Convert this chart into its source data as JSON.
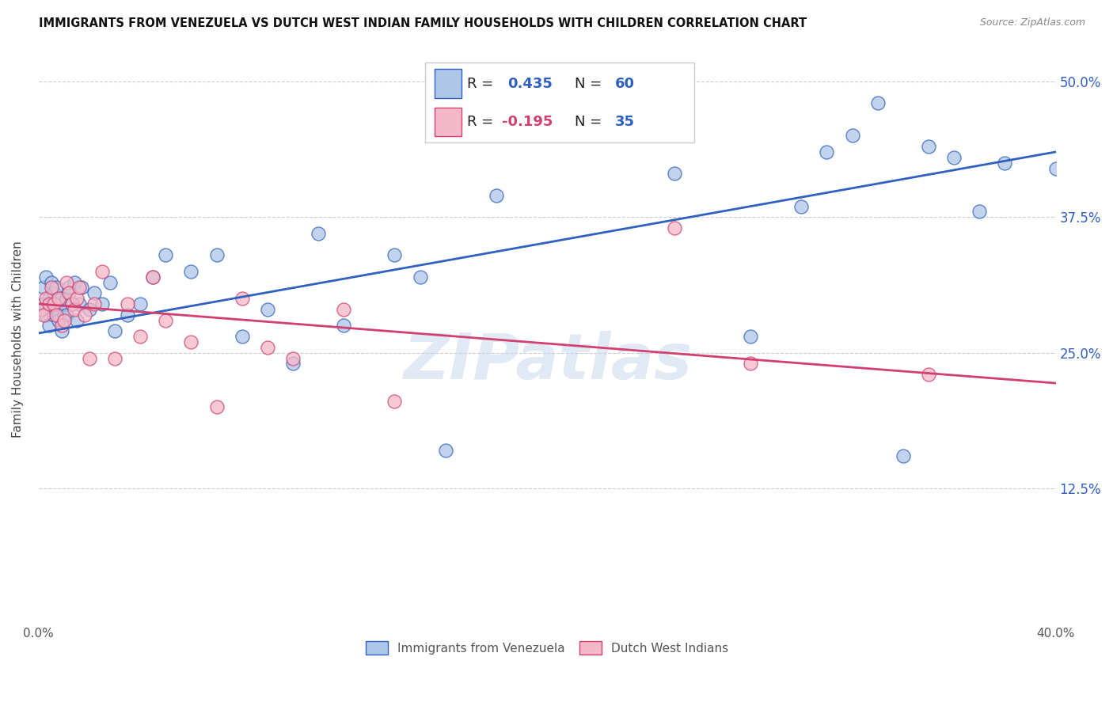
{
  "title": "IMMIGRANTS FROM VENEZUELA VS DUTCH WEST INDIAN FAMILY HOUSEHOLDS WITH CHILDREN CORRELATION CHART",
  "source": "Source: ZipAtlas.com",
  "ylabel": "Family Households with Children",
  "blue_R": "0.435",
  "blue_N": "60",
  "pink_R": "-0.195",
  "pink_N": "35",
  "blue_color": "#aec6e8",
  "pink_color": "#f5b8c8",
  "blue_line_color": "#3060c0",
  "pink_line_color": "#d04070",
  "watermark": "ZIPatlas",
  "legend_label_blue": "Immigrants from Venezuela",
  "legend_label_pink": "Dutch West Indians",
  "blue_scatter_x": [
    0.001,
    0.002,
    0.002,
    0.003,
    0.003,
    0.004,
    0.004,
    0.005,
    0.005,
    0.006,
    0.006,
    0.007,
    0.007,
    0.008,
    0.008,
    0.009,
    0.009,
    0.01,
    0.01,
    0.011,
    0.011,
    0.012,
    0.013,
    0.014,
    0.015,
    0.016,
    0.017,
    0.02,
    0.022,
    0.025,
    0.028,
    0.03,
    0.035,
    0.04,
    0.045,
    0.05,
    0.06,
    0.07,
    0.08,
    0.09,
    0.1,
    0.11,
    0.12,
    0.14,
    0.15,
    0.16,
    0.18,
    0.2,
    0.25,
    0.28,
    0.3,
    0.31,
    0.32,
    0.33,
    0.34,
    0.35,
    0.36,
    0.37,
    0.38,
    0.4
  ],
  "blue_scatter_y": [
    0.29,
    0.31,
    0.295,
    0.32,
    0.285,
    0.3,
    0.275,
    0.315,
    0.295,
    0.285,
    0.305,
    0.295,
    0.31,
    0.285,
    0.28,
    0.3,
    0.27,
    0.285,
    0.295,
    0.3,
    0.285,
    0.31,
    0.295,
    0.315,
    0.28,
    0.295,
    0.31,
    0.29,
    0.305,
    0.295,
    0.315,
    0.27,
    0.285,
    0.295,
    0.32,
    0.34,
    0.325,
    0.34,
    0.265,
    0.29,
    0.24,
    0.36,
    0.275,
    0.34,
    0.32,
    0.16,
    0.395,
    0.46,
    0.415,
    0.265,
    0.385,
    0.435,
    0.45,
    0.48,
    0.155,
    0.44,
    0.43,
    0.38,
    0.425,
    0.42
  ],
  "pink_scatter_x": [
    0.001,
    0.002,
    0.003,
    0.004,
    0.005,
    0.006,
    0.007,
    0.008,
    0.009,
    0.01,
    0.011,
    0.012,
    0.013,
    0.014,
    0.015,
    0.016,
    0.018,
    0.02,
    0.022,
    0.025,
    0.03,
    0.035,
    0.04,
    0.045,
    0.05,
    0.06,
    0.07,
    0.08,
    0.09,
    0.1,
    0.12,
    0.14,
    0.25,
    0.28,
    0.35
  ],
  "pink_scatter_y": [
    0.29,
    0.285,
    0.3,
    0.295,
    0.31,
    0.295,
    0.285,
    0.3,
    0.275,
    0.28,
    0.315,
    0.305,
    0.295,
    0.29,
    0.3,
    0.31,
    0.285,
    0.245,
    0.295,
    0.325,
    0.245,
    0.295,
    0.265,
    0.32,
    0.28,
    0.26,
    0.2,
    0.3,
    0.255,
    0.245,
    0.29,
    0.205,
    0.365,
    0.24,
    0.23
  ],
  "xlim": [
    0.0,
    0.4
  ],
  "ylim": [
    0.0,
    0.525
  ],
  "ytick_vals": [
    0.125,
    0.25,
    0.375,
    0.5
  ],
  "ytick_labels": [
    "12.5%",
    "25.0%",
    "37.5%",
    "50.0%"
  ],
  "xtick_vals": [
    0.0,
    0.1,
    0.2,
    0.3,
    0.4
  ],
  "xtick_labels": [
    "0.0%",
    "",
    "",
    "",
    "40.0%"
  ]
}
